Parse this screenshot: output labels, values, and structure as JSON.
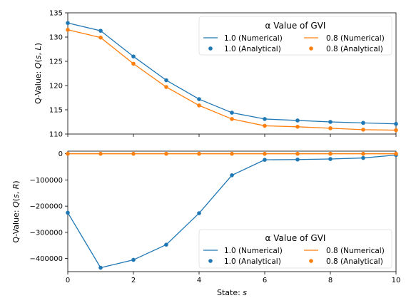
{
  "chart_data": [
    {
      "type": "line",
      "ylabel": "Q-Value: Q(s, L)",
      "xlim": [
        0,
        10
      ],
      "ylim": [
        110,
        135
      ],
      "yticks": [
        "110",
        "115",
        "120",
        "125",
        "130",
        "135"
      ],
      "x": [
        0,
        1,
        2,
        3,
        4,
        5,
        6,
        7,
        8,
        9,
        10
      ],
      "legend": {
        "title": "α Value of GVI",
        "placement": "top-right",
        "columns": 2
      },
      "series": [
        {
          "name": "1.0 (Numerical)",
          "kind": "line",
          "color": "#1f77b4",
          "values": [
            132.9,
            131.3,
            126.0,
            121.1,
            117.2,
            114.4,
            113.1,
            112.8,
            112.5,
            112.3,
            112.1
          ]
        },
        {
          "name": "1.0 (Analytical)",
          "kind": "marker",
          "color": "#1f77b4",
          "values": [
            132.9,
            131.3,
            126.0,
            121.1,
            117.2,
            114.4,
            113.1,
            112.8,
            112.5,
            112.3,
            112.1
          ]
        },
        {
          "name": "0.8 (Numerical)",
          "kind": "line",
          "color": "#ff7f0e",
          "values": [
            131.5,
            129.9,
            124.5,
            119.7,
            115.9,
            113.1,
            111.7,
            111.5,
            111.2,
            110.9,
            110.8
          ]
        },
        {
          "name": "0.8 (Analytical)",
          "kind": "marker",
          "color": "#ff7f0e",
          "values": [
            131.5,
            129.9,
            124.5,
            119.7,
            115.9,
            113.1,
            111.7,
            111.5,
            111.2,
            110.9,
            110.8
          ]
        }
      ]
    },
    {
      "type": "line",
      "xlabel": "State: s",
      "ylabel": "Q-Value: Q(s, R)",
      "xlim": [
        0,
        10
      ],
      "ylim": [
        -450000,
        10000
      ],
      "yticks": [
        "−400000",
        "−300000",
        "−200000",
        "−100000",
        "0"
      ],
      "xticks": [
        "0",
        "2",
        "4",
        "6",
        "8",
        "10"
      ],
      "x": [
        0,
        1,
        2,
        3,
        4,
        5,
        6,
        7,
        8,
        9,
        10
      ],
      "legend": {
        "title": "α Value of GVI",
        "placement": "bottom-right",
        "columns": 2
      },
      "series": [
        {
          "name": "1.0 (Numerical)",
          "kind": "line",
          "color": "#1f77b4",
          "values": [
            -225000,
            -435000,
            -405000,
            -347000,
            -227000,
            -82000,
            -23000,
            -22000,
            -20000,
            -16000,
            -5000
          ]
        },
        {
          "name": "1.0 (Analytical)",
          "kind": "marker",
          "color": "#1f77b4",
          "values": [
            -225000,
            -435000,
            -405000,
            -347000,
            -227000,
            -82000,
            -23000,
            -22000,
            -20000,
            -16000,
            -5000
          ]
        },
        {
          "name": "0.8 (Numerical)",
          "kind": "line",
          "color": "#ff7f0e",
          "values": [
            0,
            0,
            0,
            0,
            0,
            0,
            0,
            0,
            0,
            0,
            0
          ]
        },
        {
          "name": "0.8 (Analytical)",
          "kind": "marker",
          "color": "#ff7f0e",
          "values": [
            0,
            0,
            0,
            0,
            0,
            0,
            0,
            0,
            0,
            0,
            0
          ]
        }
      ]
    }
  ]
}
